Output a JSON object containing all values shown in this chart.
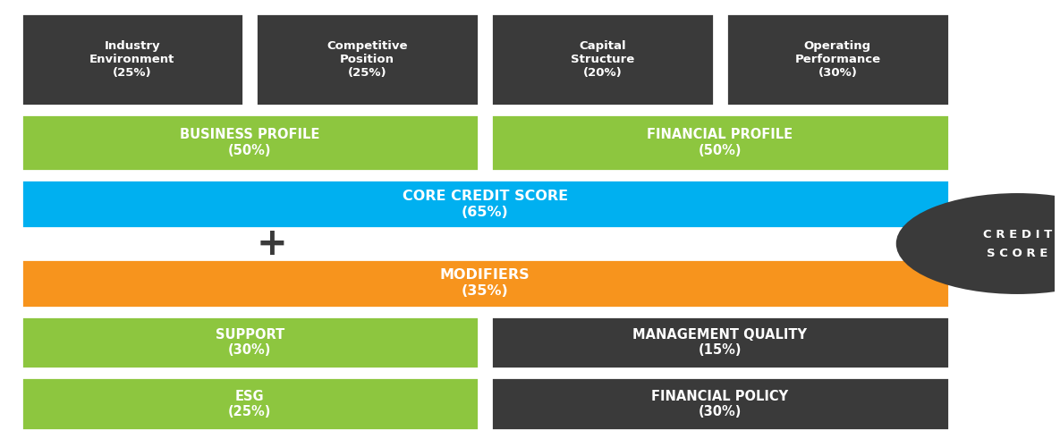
{
  "bg_color": "#ffffff",
  "dark_color": "#3a3a3a",
  "green_color": "#8dc63f",
  "blue_color": "#00b0f0",
  "orange_color": "#f7941d",
  "white_text": "#ffffff",
  "row1_boxes": [
    {
      "label": "Industry\nEnvironment\n(25%)",
      "color": "#3a3a3a",
      "text_color": "#ffffff"
    },
    {
      "label": "Competitive\nPosition\n(25%)",
      "color": "#3a3a3a",
      "text_color": "#ffffff"
    },
    {
      "label": "Capital\nStructure\n(20%)",
      "color": "#3a3a3a",
      "text_color": "#ffffff"
    },
    {
      "label": "Operating\nPerformance\n(30%)",
      "color": "#3a3a3a",
      "text_color": "#ffffff"
    }
  ],
  "row2_boxes": [
    {
      "label": "BUSINESS PROFILE\n(50%)",
      "color": "#8dc63f",
      "text_color": "#ffffff"
    },
    {
      "label": "FINANCIAL PROFILE\n(50%)",
      "color": "#8dc63f",
      "text_color": "#ffffff"
    }
  ],
  "row3_box": {
    "label": "CORE CREDIT SCORE\n(65%)",
    "color": "#00b0f0",
    "text_color": "#ffffff"
  },
  "row4_box": {
    "label": "MODIFIERS\n(35%)",
    "color": "#f7941d",
    "text_color": "#ffffff"
  },
  "row5_boxes": [
    {
      "label": "SUPPORT\n(30%)",
      "color": "#8dc63f",
      "text_color": "#ffffff"
    },
    {
      "label": "MANAGEMENT QUALITY\n(15%)",
      "color": "#3a3a3a",
      "text_color": "#ffffff"
    }
  ],
  "row6_boxes": [
    {
      "label": "ESG\n(25%)",
      "color": "#8dc63f",
      "text_color": "#ffffff"
    },
    {
      "label": "FINANCIAL POLICY\n(30%)",
      "color": "#3a3a3a",
      "text_color": "#ffffff"
    }
  ],
  "circle_color": "#3a3a3a",
  "circle_text": "C R E D I T\nS C O R E",
  "circle_text_color": "#ffffff"
}
